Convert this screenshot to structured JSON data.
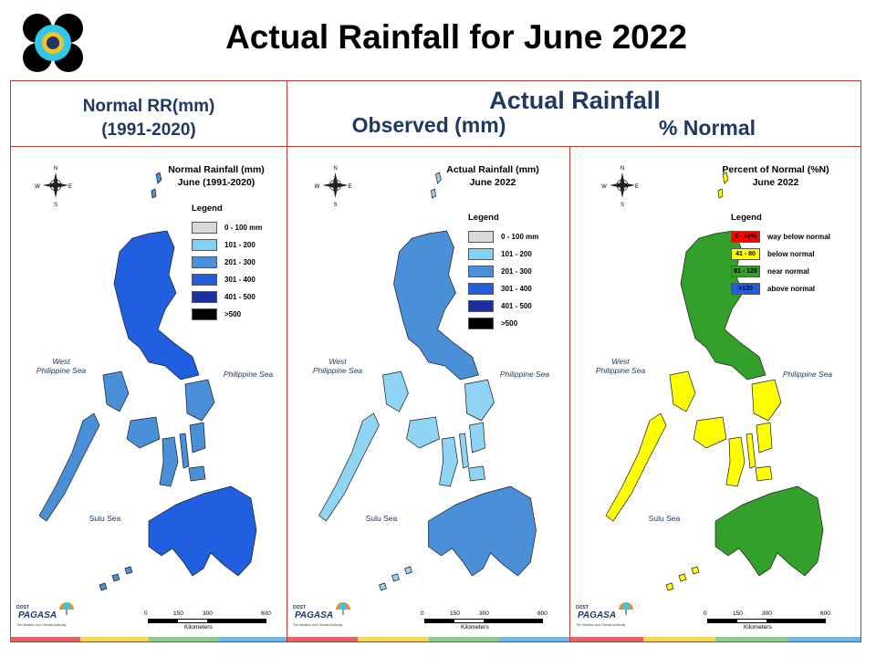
{
  "title": "Actual Rainfall for June 2022",
  "header": {
    "normal_line1": "Normal RR(mm)",
    "normal_line2": "(1991-2020)",
    "actual": "Actual Rainfall",
    "observed": "Observed (mm)",
    "percent": "% Normal"
  },
  "maps": [
    {
      "title_line1": "Normal Rainfall (mm)",
      "title_line2": "June (1991-2020)",
      "legend_title": "Legend",
      "legend": [
        {
          "label": "0 - 100 mm",
          "color": "#d9d9d9"
        },
        {
          "label": "101 - 200",
          "color": "#7fd4f5"
        },
        {
          "label": "201 - 300",
          "color": "#4a90d9"
        },
        {
          "label": "301 - 400",
          "color": "#1f5fe0"
        },
        {
          "label": "401 - 500",
          "color": "#1b2f9e"
        },
        {
          "label": ">500",
          "color": "#000000"
        }
      ],
      "base_color": "#4a90d9",
      "accent_color": "#1f5fe0"
    },
    {
      "title_line1": "Actual Rainfall (mm)",
      "title_line2": "June 2022",
      "legend_title": "Legend",
      "legend": [
        {
          "label": "0 - 100 mm",
          "color": "#d9d9d9"
        },
        {
          "label": "101 - 200",
          "color": "#7fd4f5"
        },
        {
          "label": "201 - 300",
          "color": "#4a90d9"
        },
        {
          "label": "301 - 400",
          "color": "#1f5fe0"
        },
        {
          "label": "401 - 500",
          "color": "#1b2f9e"
        },
        {
          "label": ">500",
          "color": "#000000"
        }
      ],
      "base_color": "#8fd3f5",
      "accent_color": "#4a90d9"
    },
    {
      "title_line1": "Percent of Normal (%N)",
      "title_line2": "June 2022",
      "legend_title": "Legend",
      "legend": [
        {
          "label": "way below normal",
          "swatch_text": "0 - 40%",
          "color": "#ff0000"
        },
        {
          "label": "below normal",
          "swatch_text": "41 - 80",
          "color": "#ffff00"
        },
        {
          "label": "near normal",
          "swatch_text": "81 - 120",
          "color": "#33a02c"
        },
        {
          "label": "above normal",
          "swatch_text": ">120",
          "color": "#1f5fe0"
        }
      ],
      "base_color": "#ffff00",
      "accent_color": "#33a02c"
    }
  ],
  "seas": {
    "west": "West\nPhilippine Sea",
    "east": "Philippine Sea",
    "sulu": "Sulu Sea"
  },
  "scale": {
    "ticks": [
      "0",
      "150",
      "300",
      "600"
    ],
    "unit": "Kilometers"
  },
  "compass": {
    "n": "N",
    "s": "S",
    "e": "E",
    "w": "W"
  },
  "brand": {
    "small": "DOST",
    "name": "PAGASA",
    "tagline": "The Weather and Climate Authority"
  },
  "stripe_colors": [
    "#e06666",
    "#f4d35e",
    "#8fcb8f",
    "#6fb6e6"
  ]
}
